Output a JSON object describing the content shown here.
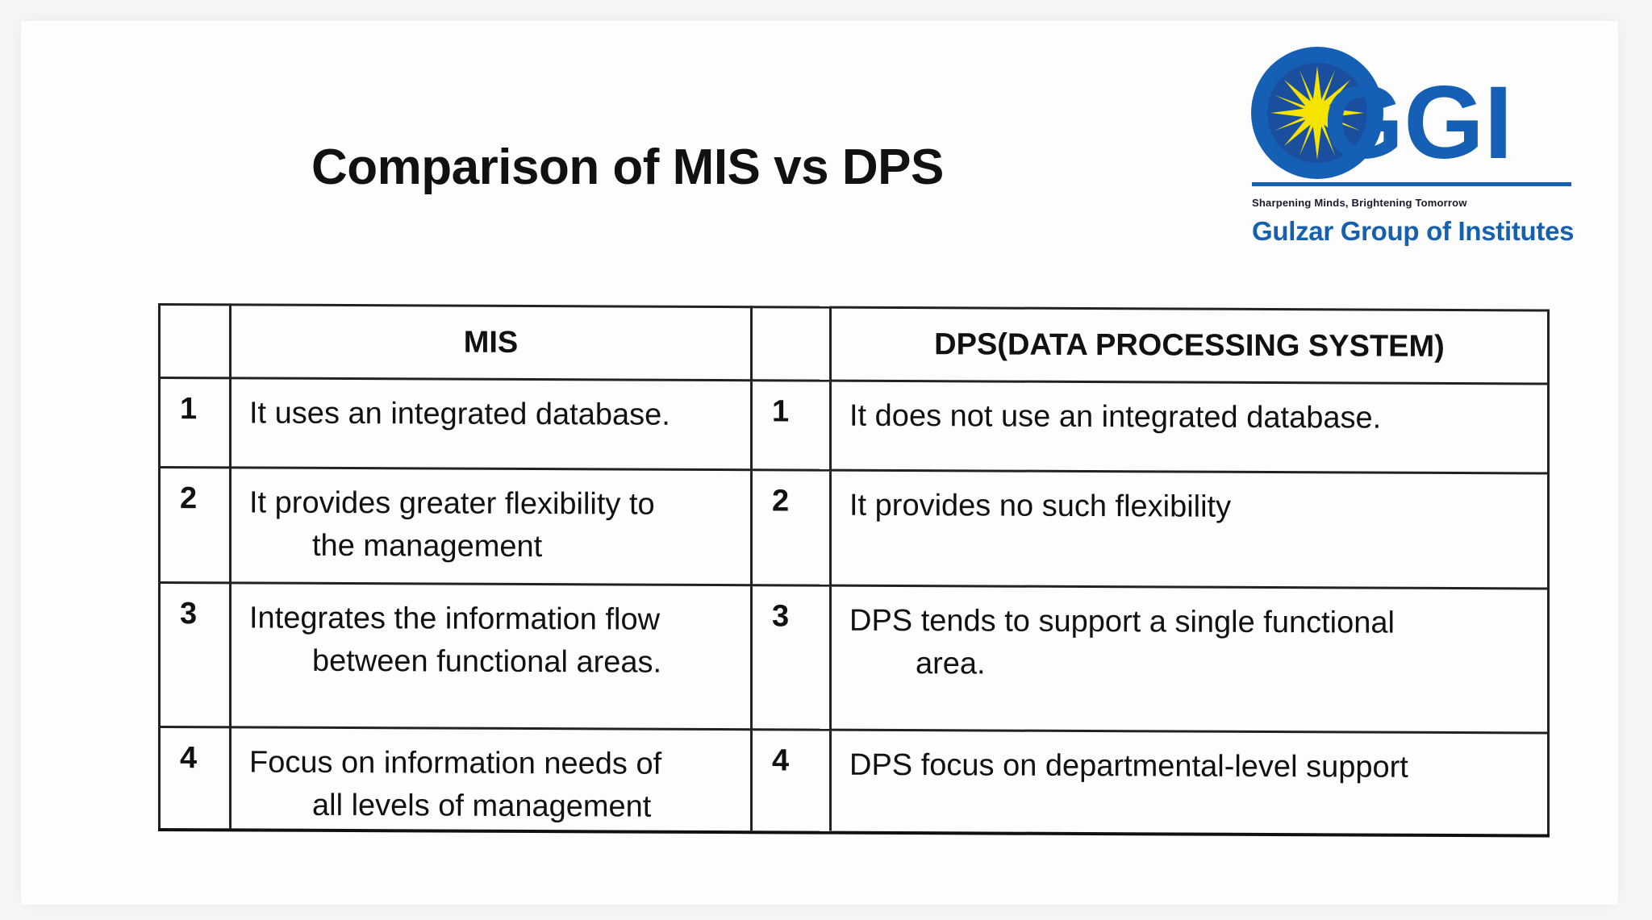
{
  "slide": {
    "title": "Comparison of MIS vs DPS"
  },
  "logo": {
    "abbr": "GGI",
    "tagline": "Sharpening Minds, Brightening Tomorrow",
    "name": "Gulzar Group of Institutes",
    "colors": {
      "circle": "#1560b5",
      "star": "#f5e400",
      "text": "#1660b0"
    }
  },
  "table": {
    "headers": {
      "col1": "",
      "col2": "MIS",
      "col3": "",
      "col4": "DPS(DATA PROCESSING SYSTEM)"
    },
    "rows": [
      {
        "mis_num": "1",
        "mis_line1": "It uses an integrated database.",
        "mis_line2": "",
        "dps_num": "1",
        "dps_line1": "It does not use an integrated database.",
        "dps_line2": ""
      },
      {
        "mis_num": "2",
        "mis_line1": "It provides greater flexibility to",
        "mis_line2": "the management",
        "dps_num": "2",
        "dps_line1": "It provides no such flexibility",
        "dps_line2": ""
      },
      {
        "mis_num": "3",
        "mis_line1": "Integrates the information flow",
        "mis_line2": "between functional areas.",
        "dps_num": "3",
        "dps_line1": "DPS tends to support a single functional",
        "dps_line2": "area."
      },
      {
        "mis_num": "4",
        "mis_line1": "Focus on information needs of",
        "mis_line2": "all levels of management",
        "dps_num": "4",
        "dps_line1": "DPS focus on departmental-level support",
        "dps_line2": ""
      }
    ]
  }
}
